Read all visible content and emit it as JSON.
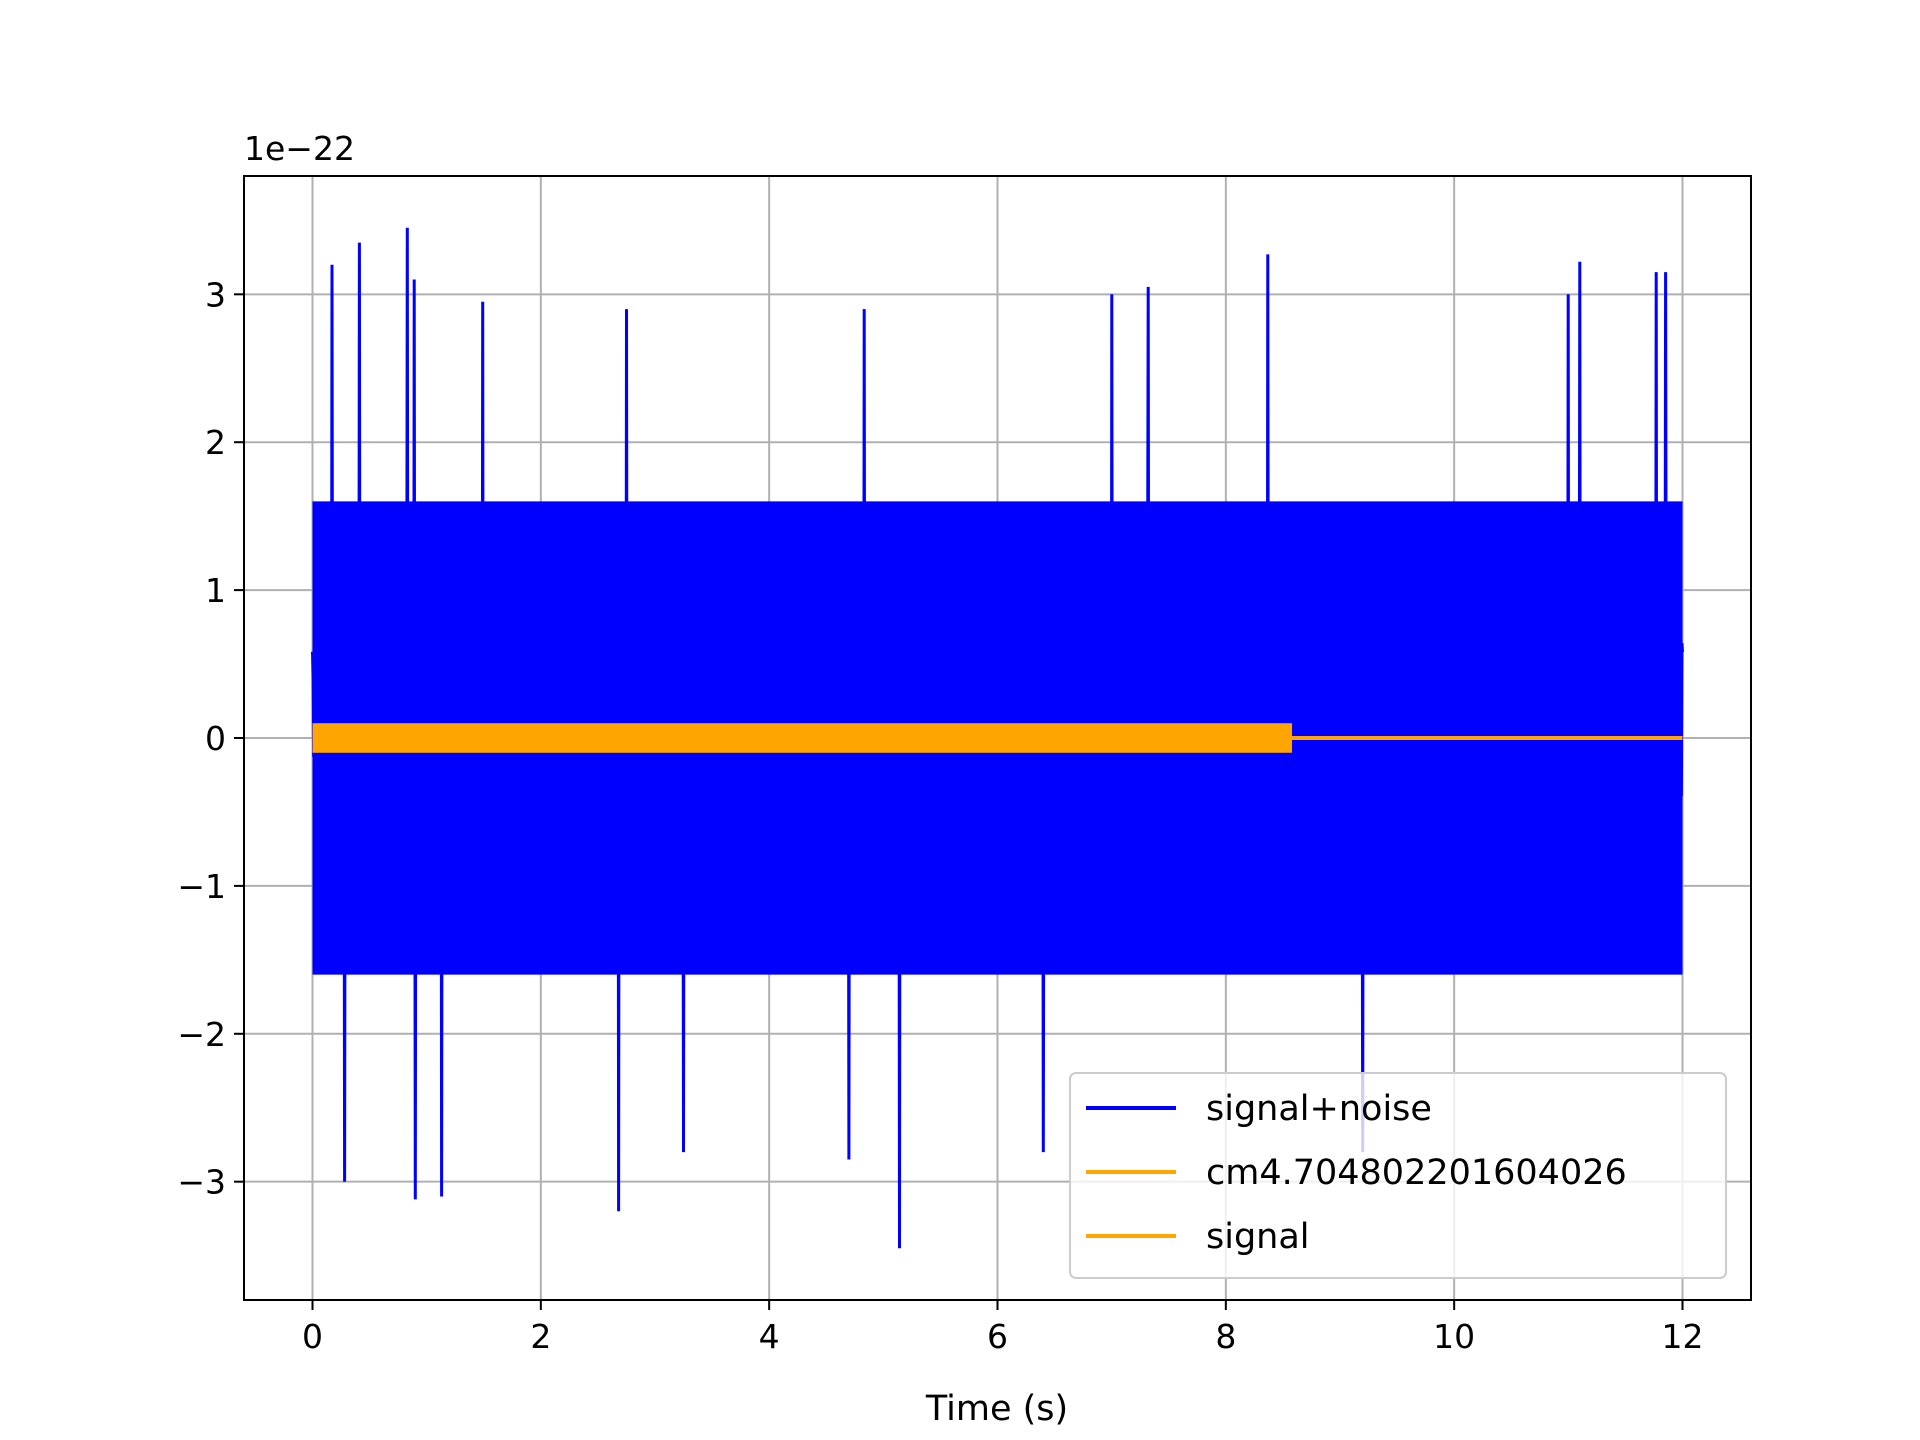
{
  "chart_data": {
    "type": "line",
    "xlabel": "Time (s)",
    "ylabel": "",
    "offset_text": "1e−22",
    "xlim": [
      -0.6,
      12.6
    ],
    "ylim": [
      -3.8,
      3.8
    ],
    "x_ticks": [
      0,
      2,
      4,
      6,
      8,
      10,
      12
    ],
    "x_tick_labels": [
      "0",
      "2",
      "4",
      "6",
      "8",
      "10",
      "12"
    ],
    "y_ticks": [
      -3,
      -2,
      -1,
      0,
      1,
      2,
      3
    ],
    "y_tick_labels": [
      "−3",
      "−2",
      "−1",
      "0",
      "1",
      "2",
      "3"
    ],
    "grid": true,
    "legend_position": "lower-right",
    "series": [
      {
        "name": "signal+noise",
        "color": "#0000ff",
        "x_range": [
          0,
          12
        ],
        "typical_band": [
          -1.9,
          1.9
        ],
        "peaks": [
          [
            0.17,
            3.2
          ],
          [
            0.41,
            3.35
          ],
          [
            0.83,
            3.45
          ],
          [
            0.89,
            3.1
          ],
          [
            1.49,
            2.95
          ],
          [
            2.75,
            2.9
          ],
          [
            4.83,
            2.9
          ],
          [
            7.0,
            3.0
          ],
          [
            7.32,
            3.05
          ],
          [
            8.37,
            3.27
          ],
          [
            11.0,
            3.0
          ],
          [
            11.1,
            3.22
          ],
          [
            11.77,
            3.15
          ],
          [
            11.85,
            3.15
          ]
        ],
        "troughs": [
          [
            0.28,
            -3.0
          ],
          [
            0.9,
            -3.12
          ],
          [
            1.13,
            -3.1
          ],
          [
            2.68,
            -3.2
          ],
          [
            3.25,
            -2.8
          ],
          [
            4.7,
            -2.85
          ],
          [
            5.14,
            -3.45
          ],
          [
            6.4,
            -2.8
          ],
          [
            9.2,
            -2.8
          ]
        ]
      },
      {
        "name": "cm4.704802201604026",
        "color": "#ffa500",
        "x_range": [
          0,
          12
        ],
        "values_note": "",
        "amplitude": 0.0
      },
      {
        "name": "signal",
        "color": "#ffa500",
        "x_range": [
          0,
          8.58
        ],
        "amplitude": 0.1,
        "after_end_value": 0
      }
    ],
    "legend_entries": [
      "signal+noise",
      "cm4.704802201604026",
      "signal"
    ]
  }
}
